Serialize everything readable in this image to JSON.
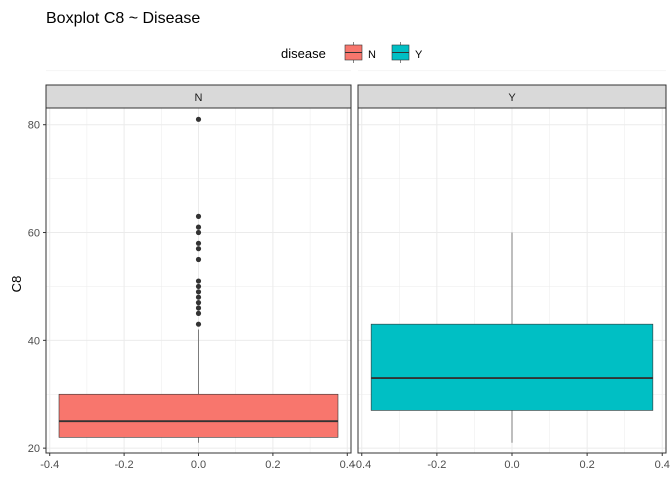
{
  "chart_data": {
    "type": "boxplot",
    "title": "Boxplot C8 ~ Disease",
    "ylabel": "C8",
    "xlabel": "",
    "legend": {
      "title": "disease",
      "position": "top",
      "entries": [
        {
          "label": "N",
          "color": "#F8766D"
        },
        {
          "label": "Y",
          "color": "#00BFC4"
        }
      ]
    },
    "ylim": [
      19.1,
      83.1
    ],
    "y_ticks": [
      20,
      40,
      60,
      80
    ],
    "xlim": [
      -0.41,
      0.41
    ],
    "x_ticks": [
      -0.4,
      -0.2,
      0.0,
      0.2,
      0.4
    ],
    "x_tick_labels": [
      "-0.4",
      "-0.2",
      "0.0",
      "0.2",
      "0.4"
    ],
    "grid": true,
    "panels": [
      {
        "strip": "N",
        "fill": "#F8766D",
        "box": {
          "whisker_low": 21,
          "q1": 22,
          "median": 25,
          "q3": 30,
          "whisker_high": 42
        },
        "outliers": [
          43,
          45,
          46,
          47,
          48,
          49,
          50,
          51,
          55,
          57,
          58,
          60,
          61,
          63,
          81
        ]
      },
      {
        "strip": "Y",
        "fill": "#00BFC4",
        "box": {
          "whisker_low": 21,
          "q1": 27,
          "median": 33,
          "q3": 43,
          "whisker_high": 60
        },
        "outliers": []
      }
    ]
  }
}
